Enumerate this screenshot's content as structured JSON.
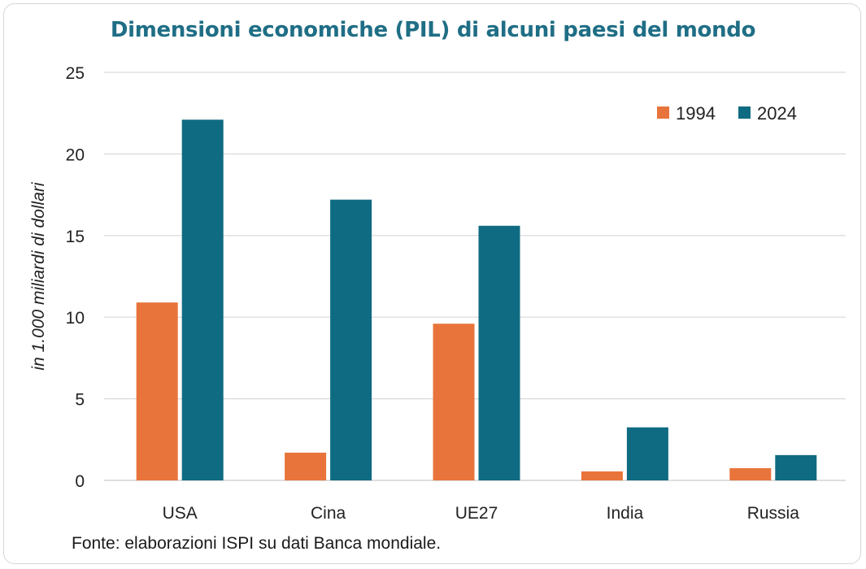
{
  "title": "Dimensioni economiche (PIL) di alcuni paesi del mondo",
  "source": "Fonte: elaborazioni ISPI su dati Banca mondiale.",
  "colors": {
    "series_1994": "#e8743b",
    "series_2024": "#0f6b82",
    "title": "#1f6e85",
    "grid": "#d9d9d9"
  },
  "chart_data": {
    "type": "bar",
    "title": "Dimensioni economiche (PIL) di alcuni paesi del mondo",
    "xlabel": "",
    "ylabel": "in 1.000 miliardi di dollari",
    "ylim": [
      0,
      25
    ],
    "yticks": [
      "0",
      "5",
      "10",
      "15",
      "20",
      "25"
    ],
    "categories": [
      "USA",
      "Cina",
      "UE27",
      "India",
      "Russia"
    ],
    "series": [
      {
        "name": "1994",
        "values": [
          10.9,
          1.7,
          9.6,
          0.55,
          0.75
        ]
      },
      {
        "name": "2024",
        "values": [
          22.1,
          17.2,
          15.6,
          3.25,
          1.55
        ]
      }
    ],
    "grid": true,
    "legend_position": "top-right"
  }
}
